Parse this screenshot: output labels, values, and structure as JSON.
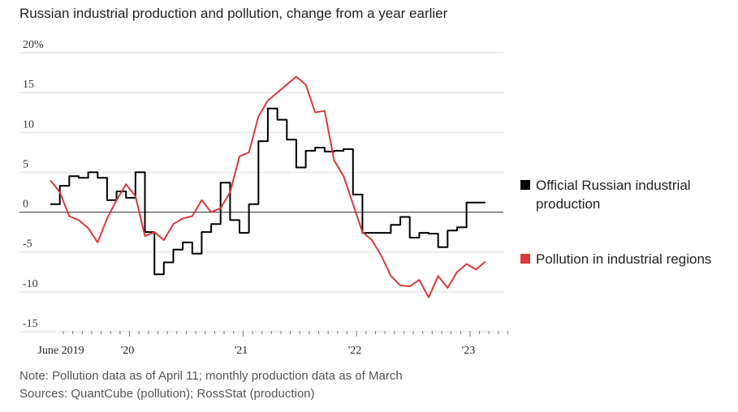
{
  "title": "Russian industrial production and pollution, change from a year earlier",
  "note": "Note: Pollution data as of April 11; monthly production data as of March",
  "sources": "Sources: QuantCube (pollution); RossStat (production)",
  "chart_data": {
    "type": "line",
    "ylim": [
      -15,
      20
    ],
    "ytick_labels": [
      "20%",
      "15",
      "10",
      "5",
      "0",
      "-5",
      "-10",
      "-15"
    ],
    "xtick_labels": [
      "June 2019",
      "'20",
      "'21",
      "'22",
      "'23"
    ],
    "x_range": [
      "2019-06",
      "2023-05"
    ],
    "grid": true,
    "legend": "right",
    "series": [
      {
        "name": "Official Russian industrial production",
        "color": "#000000",
        "step": true,
        "x": [
          "2019-06",
          "2019-07",
          "2019-08",
          "2019-09",
          "2019-10",
          "2019-11",
          "2019-12",
          "2020-01",
          "2020-02",
          "2020-03",
          "2020-04",
          "2020-05",
          "2020-06",
          "2020-07",
          "2020-08",
          "2020-09",
          "2020-10",
          "2020-11",
          "2020-12",
          "2021-01",
          "2021-02",
          "2021-03",
          "2021-04",
          "2021-05",
          "2021-06",
          "2021-07",
          "2021-08",
          "2021-09",
          "2021-10",
          "2021-11",
          "2021-12",
          "2022-01",
          "2022-02",
          "2022-03",
          "2022-04",
          "2022-05",
          "2022-06",
          "2022-07",
          "2022-08",
          "2022-09",
          "2022-10",
          "2022-11",
          "2022-12",
          "2023-01",
          "2023-02",
          "2023-03"
        ],
        "values": [
          1.0,
          3.3,
          4.5,
          4.3,
          5.0,
          4.3,
          1.5,
          2.6,
          1.8,
          5.0,
          -2.5,
          -7.8,
          -6.3,
          -4.7,
          -3.8,
          -5.2,
          -2.5,
          -1.5,
          3.7,
          -1.0,
          -2.6,
          1.0,
          8.9,
          13.0,
          11.6,
          9.1,
          5.6,
          7.7,
          8.1,
          7.6,
          7.7,
          7.9,
          2.2,
          -2.6,
          -2.6,
          -2.6,
          -1.6,
          -0.6,
          -3.2,
          -2.6,
          -2.7,
          -4.4,
          -2.3,
          -1.9,
          1.2,
          1.2
        ]
      },
      {
        "name": "Pollution in industrial regions",
        "color": "#d9393e",
        "step": false,
        "x": [
          "2019-06",
          "2019-07",
          "2019-08",
          "2019-09",
          "2019-10",
          "2019-11",
          "2019-12",
          "2020-01",
          "2020-02",
          "2020-03",
          "2020-04",
          "2020-05",
          "2020-06",
          "2020-07",
          "2020-08",
          "2020-09",
          "2020-10",
          "2020-11",
          "2020-12",
          "2021-01",
          "2021-02",
          "2021-03",
          "2021-04",
          "2021-05",
          "2021-06",
          "2021-07",
          "2021-08",
          "2021-09",
          "2021-10",
          "2021-11",
          "2021-12",
          "2022-01",
          "2022-02",
          "2022-03",
          "2022-04",
          "2022-05",
          "2022-06",
          "2022-07",
          "2022-08",
          "2022-09",
          "2022-10",
          "2022-11",
          "2022-12",
          "2023-01",
          "2023-02",
          "2023-03",
          "2023-04"
        ],
        "values": [
          4.0,
          2.5,
          -0.5,
          -1.0,
          -2.0,
          -3.8,
          -0.8,
          1.5,
          3.5,
          2.0,
          -3.0,
          -2.5,
          -3.5,
          -1.5,
          -0.8,
          -0.5,
          1.5,
          0.0,
          0.5,
          2.5,
          7.0,
          7.5,
          12.0,
          14.0,
          15.0,
          16.0,
          17.0,
          16.0,
          12.5,
          12.7,
          6.5,
          4.5,
          1.0,
          -2.5,
          -3.5,
          -5.5,
          -8.0,
          -9.2,
          -9.3,
          -8.5,
          -10.7,
          -8.0,
          -9.5,
          -7.5,
          -6.5,
          -7.2,
          -6.2
        ]
      }
    ]
  }
}
